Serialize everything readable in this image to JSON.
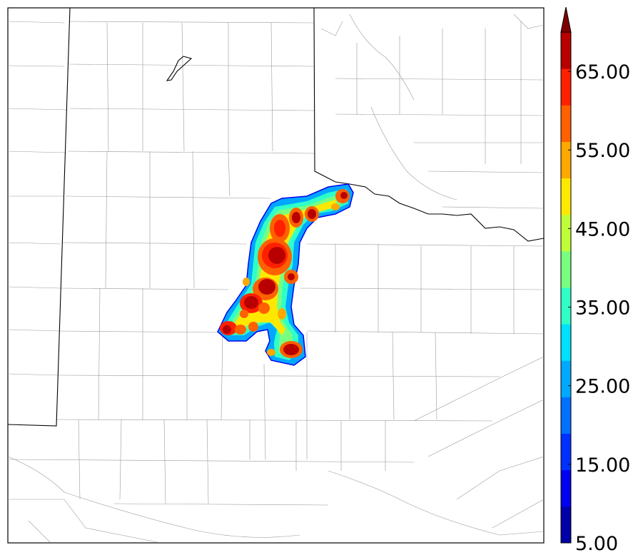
{
  "colorbar": {
    "levels": [
      5,
      10,
      15,
      20,
      25,
      30,
      35,
      40,
      45,
      50,
      55,
      60,
      65,
      70
    ],
    "colors": [
      "#0000a8",
      "#0000f0",
      "#0030ff",
      "#0070ff",
      "#00a8ff",
      "#00e0ff",
      "#30ffc8",
      "#78ff80",
      "#c0ff38",
      "#ffe800",
      "#ffa800",
      "#ff6000",
      "#ff2000",
      "#b80000"
    ],
    "extend_color": "#800000",
    "tick_labels": [
      "5.00",
      "15.00",
      "25.00",
      "35.00",
      "45.00",
      "55.00",
      "65.00"
    ]
  }
}
